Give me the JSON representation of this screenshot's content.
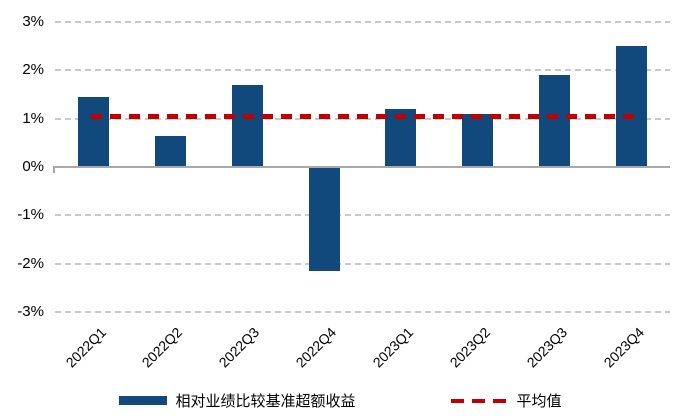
{
  "chart_data": {
    "type": "bar",
    "title": "",
    "categories": [
      "2022Q1",
      "2022Q2",
      "2022Q3",
      "2022Q4",
      "2023Q1",
      "2023Q2",
      "2023Q3",
      "2023Q4"
    ],
    "series": [
      {
        "name": "相对业绩比较基准超额收益",
        "values": [
          1.45,
          0.65,
          1.7,
          -2.15,
          1.2,
          1.1,
          1.9,
          2.5
        ]
      }
    ],
    "average_line": {
      "name": "平均值",
      "value": 1.05,
      "style": "dashed"
    },
    "xlabel": "",
    "ylabel": "",
    "ylim": [
      -3,
      3
    ],
    "ytick_step": 1,
    "yticks": [
      "3%",
      "2%",
      "1%",
      "0%",
      "-1%",
      "-2%",
      "-3%"
    ],
    "grid": true,
    "gridline_style": "dashed",
    "legend_position": "bottom"
  },
  "legend": {
    "items": [
      {
        "label": "相对业绩比较基准超额收益",
        "marker": "bar-swatch"
      },
      {
        "label": "平均值",
        "marker": "dashed-line"
      }
    ]
  },
  "colors": {
    "bar": "#12497C",
    "average_line": "#C00000",
    "gridline": "#C9C9C9",
    "axis": "#A9A9A9",
    "text": "#000000"
  }
}
